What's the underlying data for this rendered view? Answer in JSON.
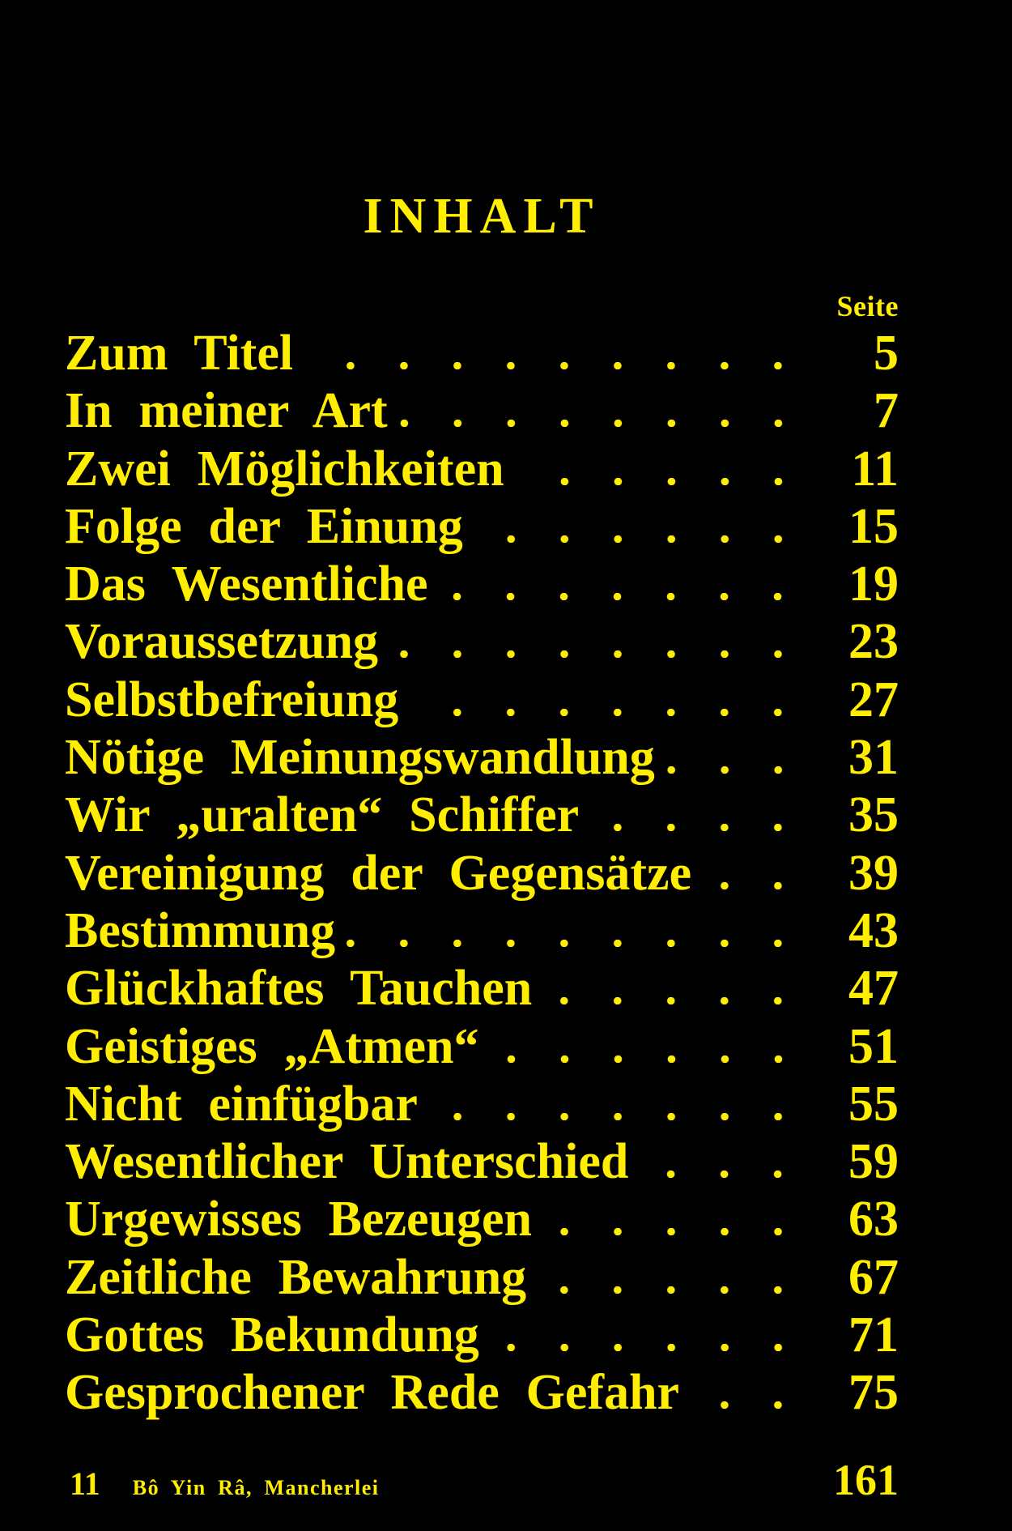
{
  "colors": {
    "background": "#000000",
    "text": "#ffee00"
  },
  "page": {
    "title": "INHALT",
    "column_header": "Seite"
  },
  "toc": {
    "entries": [
      {
        "title": "Zum Titel",
        "page": "5"
      },
      {
        "title": "In meiner Art",
        "page": "7"
      },
      {
        "title": "Zwei Möglichkeiten",
        "page": "11"
      },
      {
        "title": "Folge der Einung",
        "page": "15"
      },
      {
        "title": "Das Wesentliche",
        "page": "19"
      },
      {
        "title": "Voraussetzung",
        "page": "23"
      },
      {
        "title": "Selbstbefreiung",
        "page": "27"
      },
      {
        "title": "Nötige Meinungswandlung",
        "page": "31"
      },
      {
        "title": "Wir „uralten“ Schiffer",
        "page": "35"
      },
      {
        "title": "Vereinigung der Gegensätze",
        "page": "39"
      },
      {
        "title": "Bestimmung",
        "page": "43"
      },
      {
        "title": "Glückhaftes Tauchen",
        "page": "47"
      },
      {
        "title": "Geistiges „Atmen“",
        "page": "51"
      },
      {
        "title": "Nicht einfügbar",
        "page": "55"
      },
      {
        "title": "Wesentlicher Unterschied",
        "page": "59"
      },
      {
        "title": "Urgewisses Bezeugen",
        "page": "63"
      },
      {
        "title": "Zeitliche Bewahrung",
        "page": "67"
      },
      {
        "title": "Gottes Bekundung",
        "page": "71"
      },
      {
        "title": "Gesprochener Rede Gefahr",
        "page": "75"
      }
    ]
  },
  "footer": {
    "signature": "11",
    "book_reference": "Bô Yin Râ, Mancherlei",
    "volume_page": "161"
  }
}
